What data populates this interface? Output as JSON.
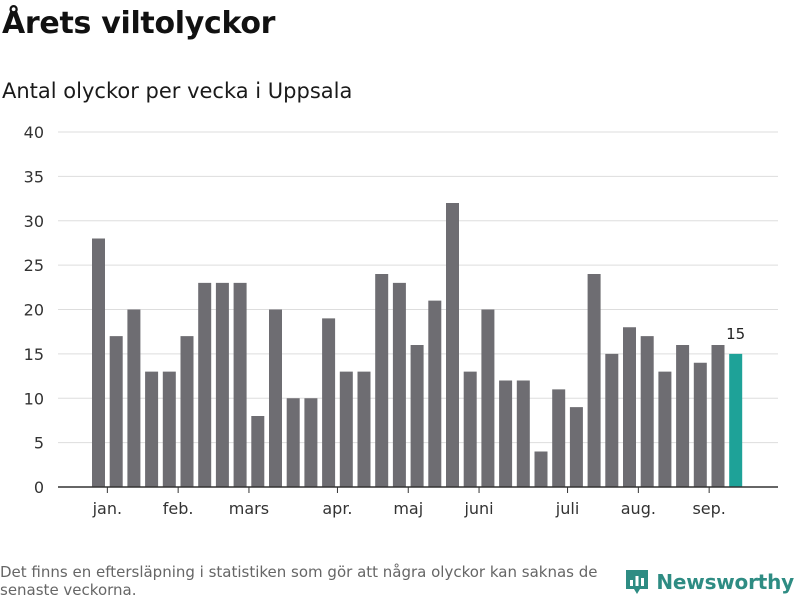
{
  "header": {
    "title": "Årets viltolyckor",
    "subtitle": "Antal olyckor per vecka i Uppsala"
  },
  "footer": {
    "note": "Det finns en eftersläpning i statistiken som gör att några olyckor kan saknas de senaste veckorna.",
    "brand": "Newsworthy"
  },
  "colors": {
    "bar": "#6e6d72",
    "highlight": "#1ea298",
    "grid": "#dddddd",
    "axis": "#333333",
    "brand": "#2e8c83"
  },
  "chart_data": {
    "type": "bar",
    "title": "Antal olyckor per vecka i Uppsala",
    "xlabel": "",
    "ylabel": "",
    "ylim": [
      0,
      40
    ],
    "yticks": [
      0,
      5,
      10,
      15,
      20,
      25,
      30,
      35,
      40
    ],
    "grid": true,
    "values": [
      28,
      17,
      20,
      13,
      13,
      17,
      23,
      23,
      23,
      8,
      20,
      10,
      10,
      19,
      13,
      13,
      24,
      23,
      16,
      21,
      32,
      13,
      20,
      12,
      12,
      4,
      11,
      9,
      24,
      15,
      18,
      17,
      13,
      16,
      14,
      16,
      15
    ],
    "month_labels": [
      {
        "label": "jan.",
        "week_index": 0.5
      },
      {
        "label": "feb.",
        "week_index": 4.5
      },
      {
        "label": "mars",
        "week_index": 8.5
      },
      {
        "label": "apr.",
        "week_index": 13.5
      },
      {
        "label": "maj",
        "week_index": 17.5
      },
      {
        "label": "juni",
        "week_index": 21.5
      },
      {
        "label": "juli",
        "week_index": 26.5
      },
      {
        "label": "aug.",
        "week_index": 30.5
      },
      {
        "label": "sep.",
        "week_index": 34.5
      }
    ],
    "highlight_index": 36,
    "highlight_label": "15"
  }
}
